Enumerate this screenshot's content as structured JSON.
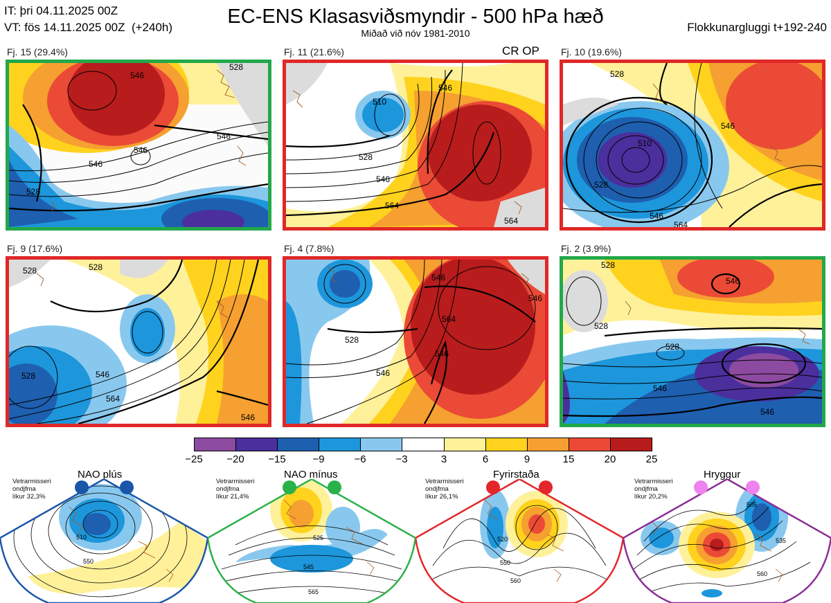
{
  "header": {
    "it_line": "IT: þri 04.11.2025 00Z",
    "vt_line": "VT: fös 14.11.2025 00Z  (+240h)",
    "title": "EC-ENS Klasasviðsmyndir - 500 hPa hæð",
    "subtitle": "Miðað við nóv 1981-2010",
    "window": "Flokkunargluggi t+192-240"
  },
  "panels": [
    {
      "label": "Fj. 15 (29.4%)",
      "frame_color": "#22a84a",
      "contours": [
        "546",
        "528",
        "546",
        "546",
        "546",
        "528"
      ],
      "extra": ""
    },
    {
      "label": "Fj. 11 (21.6%)",
      "frame_color": "#e02828",
      "contours": [
        "546",
        "510",
        "528",
        "546",
        "564",
        "564"
      ],
      "extra": "CR OP"
    },
    {
      "label": "Fj. 10 (19.6%)",
      "frame_color": "#e02828",
      "contours": [
        "528",
        "510",
        "528",
        "546",
        "546",
        "564"
      ],
      "extra": ""
    },
    {
      "label": "Fj. 9 (17.6%)",
      "frame_color": "#e02828",
      "contours": [
        "528",
        "528",
        "528",
        "546",
        "564",
        "546"
      ],
      "extra": ""
    },
    {
      "label": "Fj. 4 (7.8%)",
      "frame_color": "#e02828",
      "contours": [
        "546",
        "528",
        "546",
        "564",
        "546",
        "546"
      ],
      "extra": ""
    },
    {
      "label": "Fj. 2 (3.9%)",
      "frame_color": "#22a84a",
      "contours": [
        "528",
        "546",
        "528",
        "528",
        "546",
        "546"
      ],
      "extra": ""
    }
  ],
  "colorbar": {
    "ticks": [
      "−25",
      "−20",
      "−15",
      "−9",
      "−6",
      "−3",
      "3",
      "6",
      "9",
      "15",
      "20",
      "25"
    ],
    "colors": [
      "#8c4ba0",
      "#4b2f9c",
      "#1e5fb0",
      "#1d96db",
      "#89c8ee",
      "#ffffff",
      "#fff19a",
      "#ffd21e",
      "#f5a030",
      "#eb4a36",
      "#b81c1c"
    ]
  },
  "regimes": [
    {
      "name": "NAO plús",
      "note": [
        "Vetrarmisseri",
        "ondjfma",
        "líkur 32,3%"
      ],
      "color": "#1a56a8",
      "contours": [
        "510",
        "550"
      ]
    },
    {
      "name": "NAO mínus",
      "note": [
        "Vetrarmisseri",
        "ondjfma",
        "líkur 21,4%"
      ],
      "color": "#2bb14a",
      "contours": [
        "525",
        "545",
        "565"
      ]
    },
    {
      "name": "Fyrirstaða",
      "note": [
        "Vetrarmisseri",
        "ondjfma",
        "líkur 26,1%"
      ],
      "color": "#e3262c",
      "contours": [
        "520",
        "550",
        "560"
      ]
    },
    {
      "name": "Hryggur",
      "note": [
        "Vetrarmisseri",
        "ondjfma",
        "líkur 20,2%"
      ],
      "color": "#8a2e96",
      "contours": [
        "505",
        "535",
        "560"
      ]
    }
  ]
}
